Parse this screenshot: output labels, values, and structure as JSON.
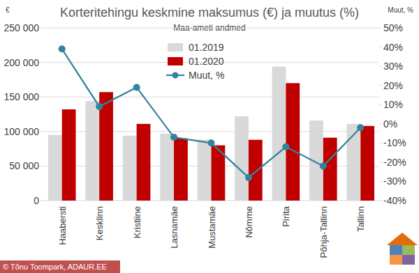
{
  "chart_data": {
    "type": "bar",
    "title": "Korteritehingu keskmine maksumus (€) ja muutus (%)",
    "subtitle": "Maa-ameti andmed",
    "ylabel": "€",
    "y2label": "Muut, %",
    "footer": "© Tõnu Toompark, ADAUR.EE",
    "categories": [
      "Haabersti",
      "Kesklinn",
      "Kristiine",
      "Lasnamäe",
      "Mustamäe",
      "Nõmme",
      "Pirita",
      "Põhja-Tallinn",
      "Tallinn"
    ],
    "series": [
      {
        "name": "01.2019",
        "color": "#d9d9d9",
        "values": [
          95000,
          144000,
          94000,
          97000,
          88000,
          122000,
          194000,
          116000,
          111000
        ]
      },
      {
        "name": "01.2020",
        "color": "#c00000",
        "values": [
          132000,
          157000,
          111000,
          90000,
          80000,
          88000,
          170000,
          91000,
          108000
        ]
      },
      {
        "name": "Muut, %",
        "type": "line",
        "axis": "y2",
        "color": "#31849b",
        "marker": "circle",
        "values": [
          39,
          9,
          19,
          -7,
          -10,
          -28,
          -12,
          -22,
          -2
        ]
      }
    ],
    "ylim": [
      0,
      250000
    ],
    "yticks": [
      0,
      {
        "value": 50000,
        "label": "50 000"
      },
      {
        "value": 100000,
        "label": "100 000"
      },
      {
        "value": 150000,
        "label": "150 000"
      },
      {
        "value": 200000,
        "label": "200 000"
      },
      {
        "value": 250000,
        "label": "250 000"
      }
    ],
    "y2lim": [
      -40,
      50
    ],
    "y2ticks": [
      {
        "value": -40,
        "label": "-40%"
      },
      {
        "value": -30,
        "label": "-30%"
      },
      {
        "value": -20,
        "label": "-20%"
      },
      {
        "value": -10,
        "label": "-10%"
      },
      {
        "value": 0,
        "label": "0%"
      },
      {
        "value": 10,
        "label": "10%"
      },
      {
        "value": 20,
        "label": "20%"
      },
      {
        "value": 30,
        "label": "30%"
      },
      {
        "value": 40,
        "label": "40%"
      },
      {
        "value": 50,
        "label": "50%"
      }
    ],
    "grid": true,
    "legend": "top"
  }
}
